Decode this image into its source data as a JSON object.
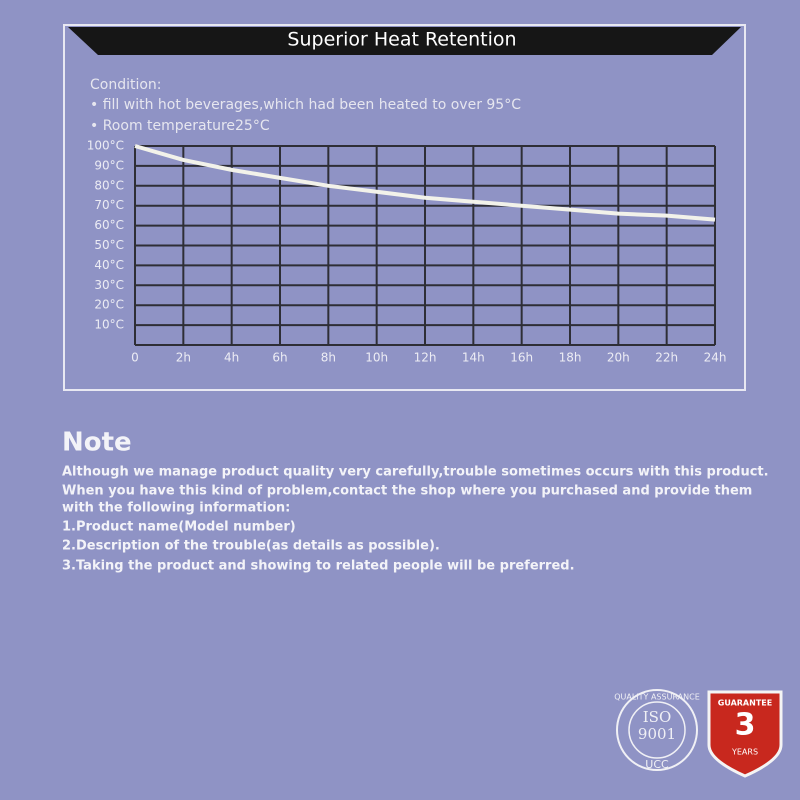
{
  "chart_data": {
    "type": "line",
    "title": "Superior Heat Retention",
    "condition": {
      "heading": "Condition:",
      "items": [
        "• fill with hot beverages,which had been heated to over 95°C",
        "• Room temperature25°C"
      ]
    },
    "x": [
      0,
      2,
      4,
      6,
      8,
      10,
      12,
      14,
      16,
      18,
      20,
      22,
      24
    ],
    "values": [
      100,
      93,
      88,
      84,
      80,
      77,
      74,
      72,
      70,
      68,
      66,
      65,
      63
    ],
    "color": "#f2f2ea",
    "xlim": [
      0,
      24
    ],
    "xticks": [
      0,
      {
        "value": 2,
        "label": "2h"
      },
      {
        "value": 4,
        "label": "4h"
      },
      {
        "value": 6,
        "label": "6h"
      },
      {
        "value": 8,
        "label": "8h"
      },
      {
        "value": 10,
        "label": "10h"
      },
      {
        "value": 12,
        "label": "12h"
      },
      {
        "value": 14,
        "label": "14h"
      },
      {
        "value": 16,
        "label": "16h"
      },
      {
        "value": 18,
        "label": "18h"
      },
      {
        "value": 20,
        "label": "20h"
      },
      {
        "value": 22,
        "label": "22h"
      },
      {
        "value": 24,
        "label": "24h"
      }
    ],
    "ylim": [
      0,
      100
    ],
    "yticks": [
      {
        "value": 10,
        "label": "10°C"
      },
      {
        "value": 20,
        "label": "20°C"
      },
      {
        "value": 30,
        "label": "30°C"
      },
      {
        "value": 40,
        "label": "40°C"
      },
      {
        "value": 50,
        "label": "50°C"
      },
      {
        "value": 60,
        "label": "60°C"
      },
      {
        "value": 70,
        "label": "70°C"
      },
      {
        "value": 80,
        "label": "80°C"
      },
      {
        "value": 90,
        "label": "90°C"
      },
      {
        "value": 100,
        "label": "100°C"
      }
    ],
    "grid": true
  },
  "note": {
    "heading": "Note",
    "lines": [
      "Although we manage product quality very carefully,trouble sometimes occurs with this product.",
      "When you have this kind of problem,contact the shop where you purchased and provide them",
      "with the following information:",
      "1.Product name(Model number)",
      "2.Description of the trouble(as details as possible).",
      "3.Taking the product and showing to related people will be preferred."
    ]
  },
  "badges": {
    "iso": {
      "ring": "QUALITY ASSURANCE",
      "name": "ISO",
      "number": "9001",
      "mark": "UCC"
    },
    "guarantee": {
      "heading": "GUARANTEE",
      "number": "3",
      "unit": "YEARS"
    }
  }
}
